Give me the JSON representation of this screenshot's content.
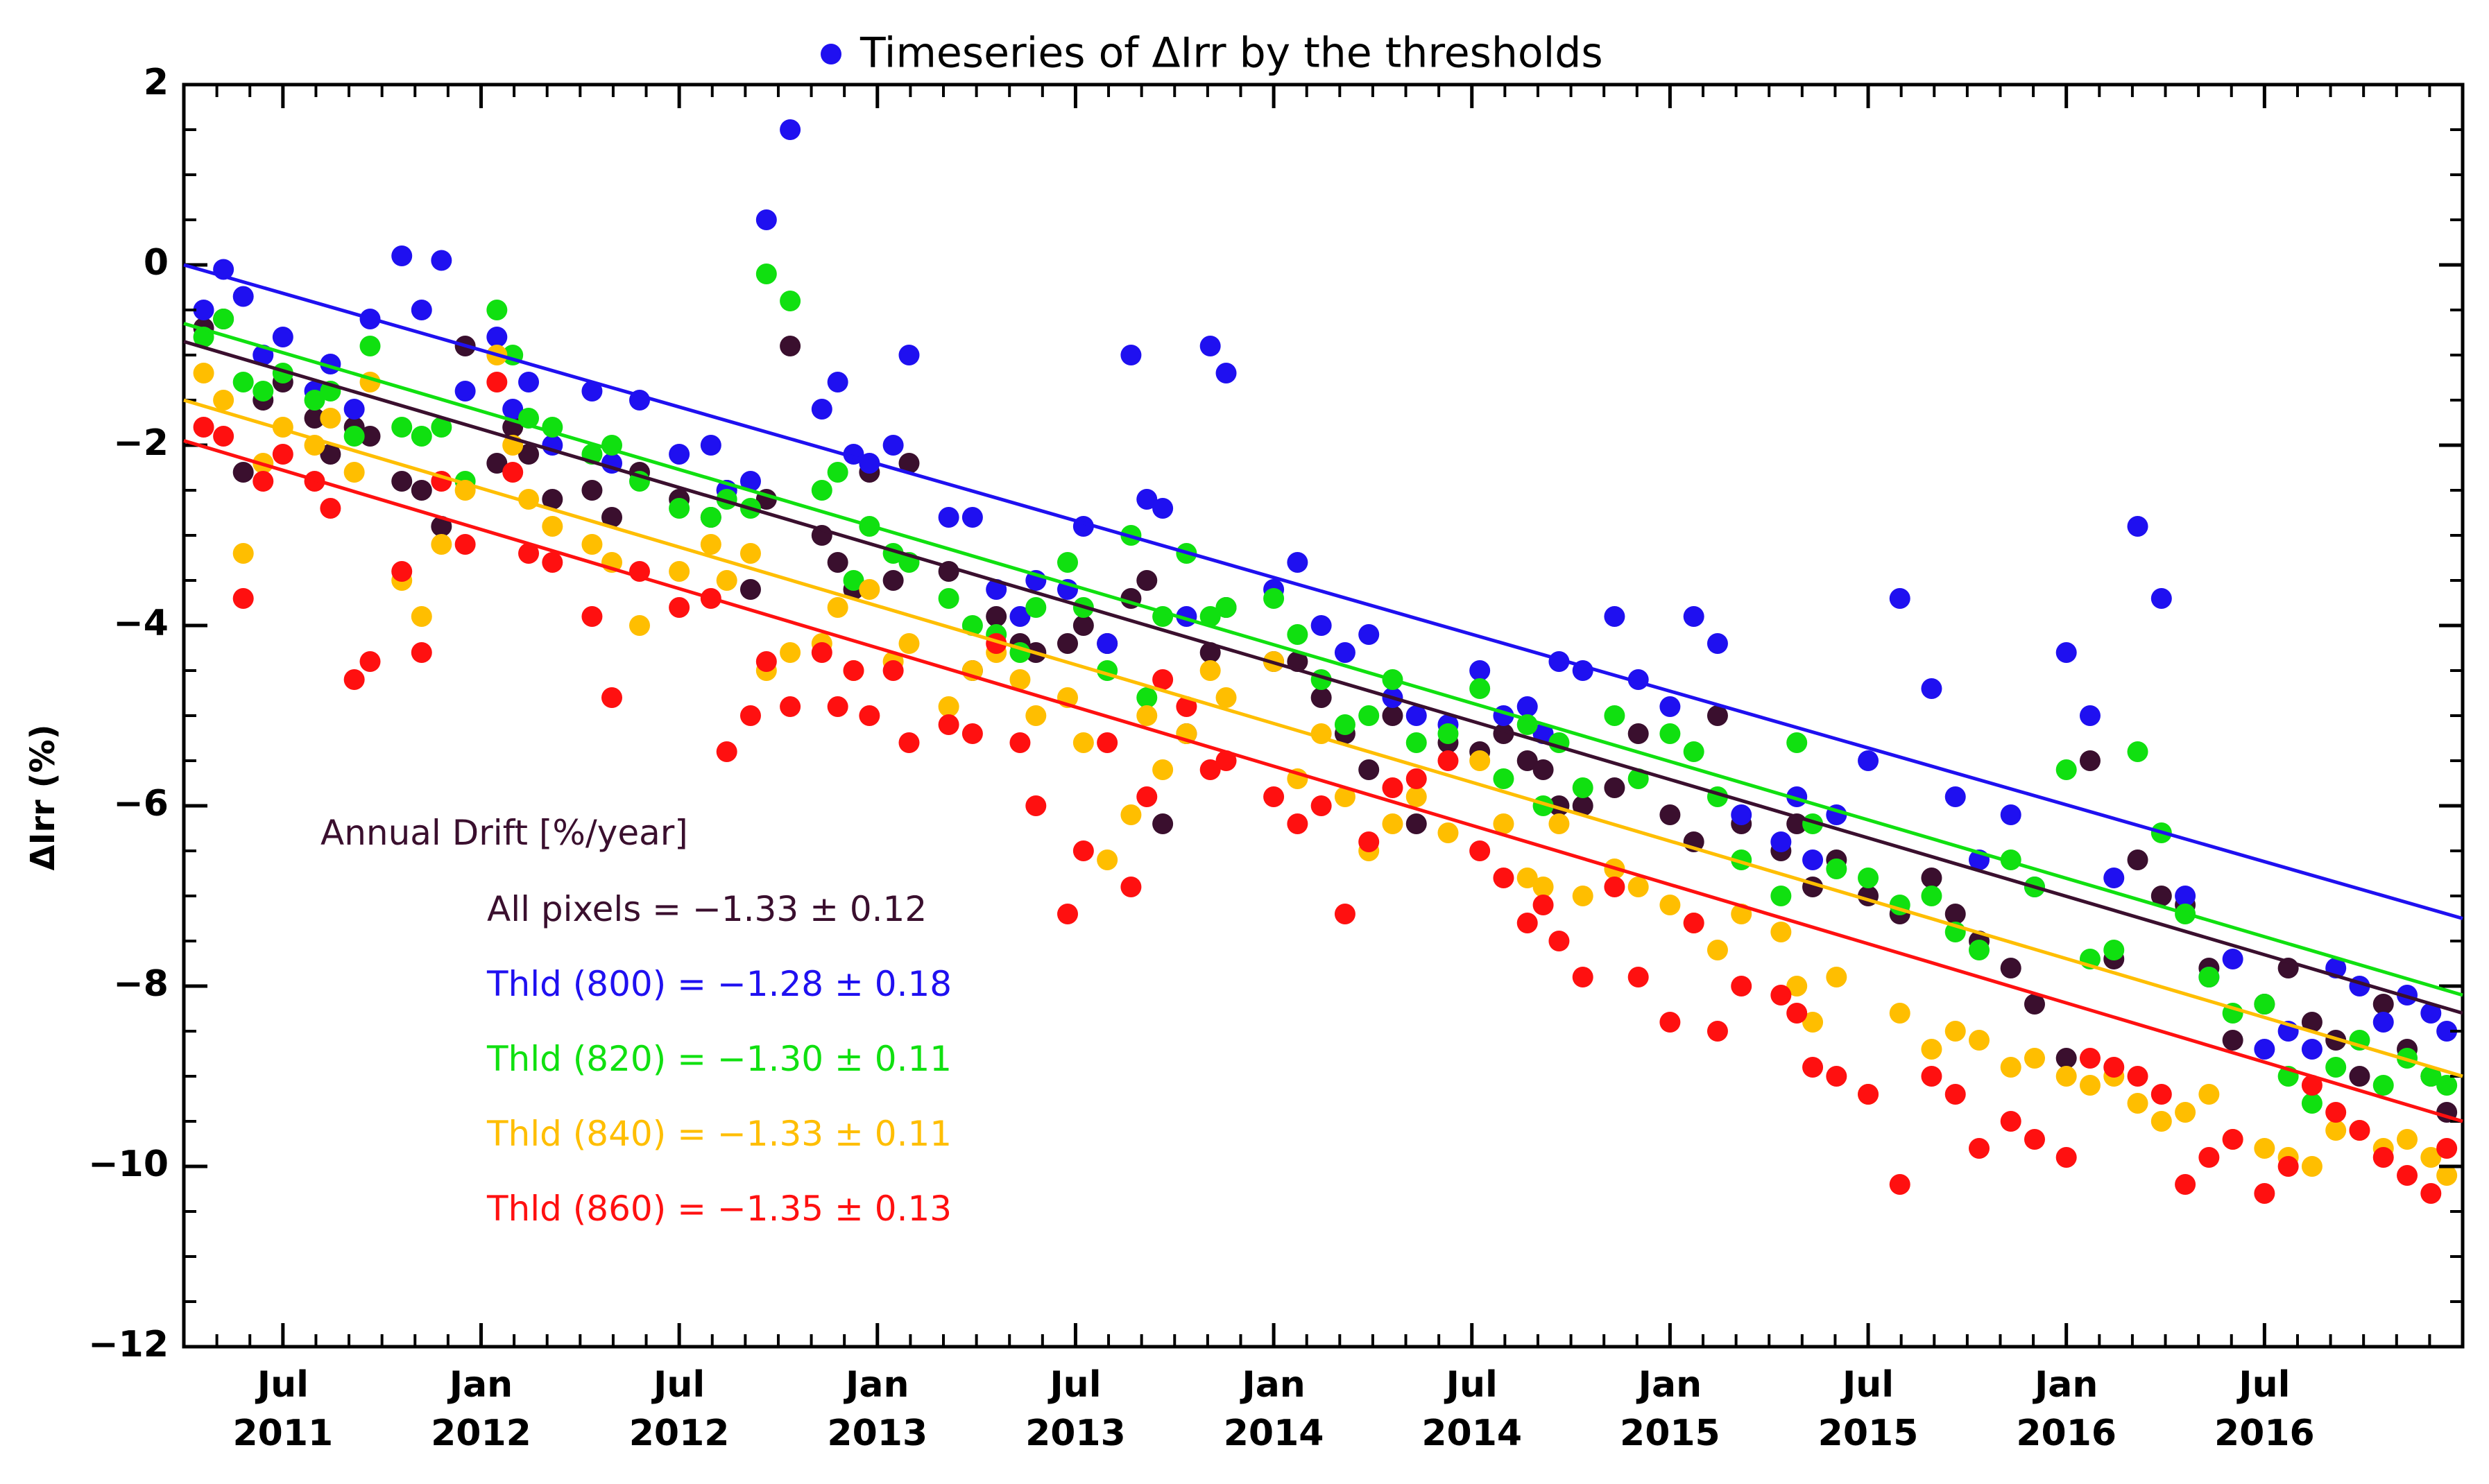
{
  "chart_data": {
    "type": "scatter",
    "title": "Timeseries of ΔIrr by the thresholds",
    "xlabel": "",
    "ylabel": "ΔIrr  (%)",
    "ylim": [
      -12,
      2
    ],
    "xlim": [
      2011.25,
      2017.0
    ],
    "yticks": [
      2,
      0,
      -2,
      -4,
      -6,
      -8,
      -10,
      -12
    ],
    "xticks": [
      {
        "x": 2011.5,
        "line1": "Jul",
        "line2": "2011"
      },
      {
        "x": 2012.0,
        "line1": "Jan",
        "line2": "2012"
      },
      {
        "x": 2012.5,
        "line1": "Jul",
        "line2": "2012"
      },
      {
        "x": 2013.0,
        "line1": "Jan",
        "line2": "2013"
      },
      {
        "x": 2013.5,
        "line1": "Jul",
        "line2": "2013"
      },
      {
        "x": 2014.0,
        "line1": "Jan",
        "line2": "2014"
      },
      {
        "x": 2014.5,
        "line1": "Jul",
        "line2": "2014"
      },
      {
        "x": 2015.0,
        "line1": "Jan",
        "line2": "2015"
      },
      {
        "x": 2015.5,
        "line1": "Jul",
        "line2": "2015"
      },
      {
        "x": 2016.0,
        "line1": "Jan",
        "line2": "2016"
      },
      {
        "x": 2016.5,
        "line1": "Jul",
        "line2": "2016"
      }
    ],
    "legend": {
      "title": "Annual Drift [%/year]",
      "entries": [
        {
          "label": "All pixels = −1.33 ± 0.12",
          "color": "#3a0f2e"
        },
        {
          "label": "Thld (800) = −1.28 ± 0.18",
          "color": "#1f10f0"
        },
        {
          "label": "Thld (820) = −1.30 ± 0.11",
          "color": "#10e010"
        },
        {
          "label": "Thld (840) = −1.33 ± 0.11",
          "color": "#ffbe00"
        },
        {
          "label": "Thld (860) = −1.35 ± 0.13",
          "color": "#ff1010"
        }
      ]
    },
    "title_marker_color": "#1f10f0",
    "x": [
      2011.3,
      2011.35,
      2011.4,
      2011.45,
      2011.5,
      2011.58,
      2011.62,
      2011.68,
      2011.72,
      2011.8,
      2011.85,
      2011.9,
      2011.96,
      2012.04,
      2012.08,
      2012.12,
      2012.18,
      2012.28,
      2012.33,
      2012.4,
      2012.5,
      2012.58,
      2012.62,
      2012.68,
      2012.72,
      2012.78,
      2012.86,
      2012.9,
      2012.94,
      2012.98,
      2013.04,
      2013.08,
      2013.18,
      2013.24,
      2013.3,
      2013.36,
      2013.4,
      2013.48,
      2013.52,
      2013.58,
      2013.64,
      2013.68,
      2013.72,
      2013.78,
      2013.84,
      2013.88,
      2014.0,
      2014.06,
      2014.12,
      2014.18,
      2014.24,
      2014.3,
      2014.36,
      2014.44,
      2014.52,
      2014.58,
      2014.64,
      2014.68,
      2014.72,
      2014.78,
      2014.86,
      2014.92,
      2015.0,
      2015.06,
      2015.12,
      2015.18,
      2015.28,
      2015.32,
      2015.36,
      2015.42,
      2015.5,
      2015.58,
      2015.66,
      2015.72,
      2015.78,
      2015.86,
      2015.92,
      2016.0,
      2016.06,
      2016.12,
      2016.18,
      2016.24,
      2016.3,
      2016.36,
      2016.42,
      2016.5,
      2016.56,
      2016.62,
      2016.68,
      2016.74,
      2016.8,
      2016.86,
      2016.92,
      2016.96
    ],
    "series": [
      {
        "name": "All pixels",
        "color": "#3a0f2e",
        "values": [
          -0.7,
          -0.6,
          -2.3,
          -1.5,
          -1.3,
          -1.7,
          -2.1,
          -1.8,
          -1.9,
          -2.4,
          -2.5,
          -2.9,
          -0.9,
          -2.2,
          -1.8,
          -2.1,
          -2.6,
          -2.5,
          -2.8,
          -2.3,
          -2.6,
          -2.8,
          -2.5,
          -3.6,
          -2.6,
          -0.9,
          -3.0,
          -3.3,
          -3.6,
          -2.3,
          -3.5,
          -2.2,
          -3.4,
          -4.5,
          -3.9,
          -4.2,
          -4.3,
          -4.2,
          -4.0,
          -4.2,
          -3.7,
          -3.5,
          -6.2,
          -5.2,
          -4.3,
          -3.8,
          -4.4,
          -4.4,
          -4.8,
          -5.2,
          -5.6,
          -5.0,
          -6.2,
          -5.3,
          -5.4,
          -5.2,
          -5.5,
          -5.6,
          -6.0,
          -6.0,
          -5.8,
          -5.2,
          -6.1,
          -6.4,
          -5.0,
          -6.2,
          -6.5,
          -6.2,
          -6.9,
          -6.6,
          -7.0,
          -7.2,
          -6.8,
          -7.2,
          -7.5,
          -7.8,
          -8.2,
          -8.8,
          -5.5,
          -7.7,
          -6.6,
          -7.0,
          -7.1,
          -7.8,
          -8.6,
          -8.2,
          -7.8,
          -8.4,
          -8.6,
          -9.0,
          -8.2,
          -8.7,
          -9.0,
          -9.4
        ]
      },
      {
        "name": "Thld (800)",
        "color": "#1f10f0",
        "values": [
          -0.5,
          -0.05,
          -0.35,
          -1.0,
          -0.8,
          -1.4,
          -1.1,
          -1.6,
          -0.6,
          0.1,
          -0.5,
          0.05,
          -1.4,
          -0.8,
          -1.6,
          -1.3,
          -2.0,
          -1.4,
          -2.2,
          -1.5,
          -2.1,
          -2.0,
          -2.5,
          -2.4,
          0.5,
          1.5,
          -1.6,
          -1.3,
          -2.1,
          -2.2,
          -2.0,
          -1.0,
          -2.8,
          -2.8,
          -3.6,
          -3.9,
          -3.5,
          -3.6,
          -2.9,
          -4.2,
          -1.0,
          -2.6,
          -2.7,
          -3.9,
          -0.9,
          -1.2,
          -3.6,
          -3.3,
          -4.0,
          -4.3,
          -4.1,
          -4.8,
          -5.0,
          -5.1,
          -4.5,
          -5.0,
          -4.9,
          -5.2,
          -4.4,
          -4.5,
          -3.9,
          -4.6,
          -4.9,
          -3.9,
          -4.2,
          -6.1,
          -6.4,
          -5.9,
          -6.6,
          -6.1,
          -5.5,
          -3.7,
          -4.7,
          -5.9,
          -6.6,
          -6.1,
          -6.9,
          -4.3,
          -5.0,
          -6.8,
          -2.9,
          -3.7,
          -7.0,
          -7.9,
          -7.7,
          -8.7,
          -8.5,
          -8.7,
          -7.8,
          -8.0,
          -8.4,
          -8.1,
          -8.3,
          -8.5
        ]
      },
      {
        "name": "Thld (820)",
        "color": "#10e010",
        "values": [
          -0.8,
          -0.6,
          -1.3,
          -1.4,
          -1.2,
          -1.5,
          -1.4,
          -1.9,
          -0.9,
          -1.8,
          -1.9,
          -1.8,
          -2.4,
          -0.5,
          -1.0,
          -1.7,
          -1.8,
          -2.1,
          -2.0,
          -2.4,
          -2.7,
          -2.8,
          -2.6,
          -2.7,
          -0.1,
          -0.4,
          -2.5,
          -2.3,
          -3.5,
          -2.9,
          -3.2,
          -3.3,
          -3.7,
          -4.0,
          -4.1,
          -4.3,
          -3.8,
          -3.3,
          -3.8,
          -4.5,
          -3.0,
          -4.8,
          -3.9,
          -3.2,
          -3.9,
          -3.8,
          -3.7,
          -4.1,
          -4.6,
          -5.1,
          -5.0,
          -4.6,
          -5.3,
          -5.2,
          -4.7,
          -5.7,
          -5.1,
          -6.0,
          -5.3,
          -5.8,
          -5.0,
          -5.7,
          -5.2,
          -5.4,
          -5.9,
          -6.6,
          -7.0,
          -5.3,
          -6.2,
          -6.7,
          -6.8,
          -7.1,
          -7.0,
          -7.4,
          -7.6,
          -6.6,
          -6.9,
          -5.6,
          -7.7,
          -7.6,
          -5.4,
          -6.3,
          -7.2,
          -7.9,
          -8.3,
          -8.2,
          -9.0,
          -9.3,
          -8.9,
          -8.6,
          -9.1,
          -8.8,
          -9.0,
          -9.1
        ]
      },
      {
        "name": "Thld (840)",
        "color": "#ffbe00",
        "values": [
          -1.2,
          -1.5,
          -3.2,
          -2.2,
          -1.8,
          -2.0,
          -1.7,
          -2.3,
          -1.3,
          -3.5,
          -3.9,
          -3.1,
          -2.5,
          -1.0,
          -2.0,
          -2.6,
          -2.9,
          -3.1,
          -3.3,
          -4.0,
          -3.4,
          -3.1,
          -3.5,
          -3.2,
          -4.5,
          -4.3,
          -4.2,
          -3.8,
          -4.5,
          -3.6,
          -4.4,
          -4.2,
          -4.9,
          -4.5,
          -4.3,
          -4.6,
          -5.0,
          -4.8,
          -5.3,
          -6.6,
          -6.1,
          -5.0,
          -5.6,
          -5.2,
          -4.5,
          -4.8,
          -4.4,
          -5.7,
          -5.2,
          -5.9,
          -6.5,
          -6.2,
          -5.9,
          -6.3,
          -5.5,
          -6.2,
          -6.8,
          -6.9,
          -6.2,
          -7.0,
          -6.7,
          -6.9,
          -7.1,
          -7.3,
          -7.6,
          -7.2,
          -7.4,
          -8.0,
          -8.4,
          -7.9,
          -9.2,
          -8.3,
          -8.7,
          -8.5,
          -8.6,
          -8.9,
          -8.8,
          -9.0,
          -9.1,
          -9.0,
          -9.3,
          -9.5,
          -9.4,
          -9.2,
          -9.7,
          -9.8,
          -9.9,
          -10.0,
          -9.6,
          -9.6,
          -9.8,
          -9.7,
          -9.9,
          -10.1
        ]
      },
      {
        "name": "Thld (860)",
        "color": "#ff1010",
        "values": [
          -1.8,
          -1.9,
          -3.7,
          -2.4,
          -2.1,
          -2.4,
          -2.7,
          -4.6,
          -4.4,
          -3.4,
          -4.3,
          -2.4,
          -3.1,
          -1.3,
          -2.3,
          -3.2,
          -3.3,
          -3.9,
          -4.8,
          -3.4,
          -3.8,
          -3.7,
          -5.4,
          -5.0,
          -4.4,
          -4.9,
          -4.3,
          -4.9,
          -4.5,
          -5.0,
          -4.5,
          -5.3,
          -5.1,
          -5.2,
          -4.2,
          -5.3,
          -6.0,
          -7.2,
          -6.5,
          -5.3,
          -6.9,
          -5.9,
          -4.6,
          -4.9,
          -5.6,
          -5.5,
          -5.9,
          -6.2,
          -6.0,
          -7.2,
          -6.4,
          -5.8,
          -5.7,
          -5.5,
          -6.5,
          -6.8,
          -7.3,
          -7.1,
          -7.5,
          -7.9,
          -6.9,
          -7.9,
          -8.4,
          -7.3,
          -8.5,
          -8.0,
          -8.1,
          -8.3,
          -8.9,
          -9.0,
          -9.2,
          -10.2,
          -9.0,
          -9.2,
          -9.8,
          -9.5,
          -9.7,
          -9.9,
          -8.8,
          -8.9,
          -9.0,
          -9.2,
          -10.2,
          -9.9,
          -9.7,
          -10.3,
          -10.0,
          -9.1,
          -9.4,
          -9.6,
          -9.9,
          -10.1,
          -10.3,
          -9.8
        ]
      }
    ],
    "fit_lines": [
      {
        "name": "All pixels",
        "color": "#3a0f2e",
        "x": [
          2011.25,
          2017.0
        ],
        "y": [
          -0.85,
          -8.3
        ]
      },
      {
        "name": "Thld (800)",
        "color": "#1f10f0",
        "x": [
          2011.25,
          2017.0
        ],
        "y": [
          0.0,
          -7.25
        ]
      },
      {
        "name": "Thld (820)",
        "color": "#10e010",
        "x": [
          2011.25,
          2017.0
        ],
        "y": [
          -0.65,
          -8.1
        ]
      },
      {
        "name": "Thld (840)",
        "color": "#ffbe00",
        "x": [
          2011.25,
          2017.0
        ],
        "y": [
          -1.5,
          -9.0
        ]
      },
      {
        "name": "Thld (860)",
        "color": "#ff1010",
        "x": [
          2011.25,
          2017.0
        ],
        "y": [
          -1.95,
          -9.5
        ]
      }
    ]
  }
}
